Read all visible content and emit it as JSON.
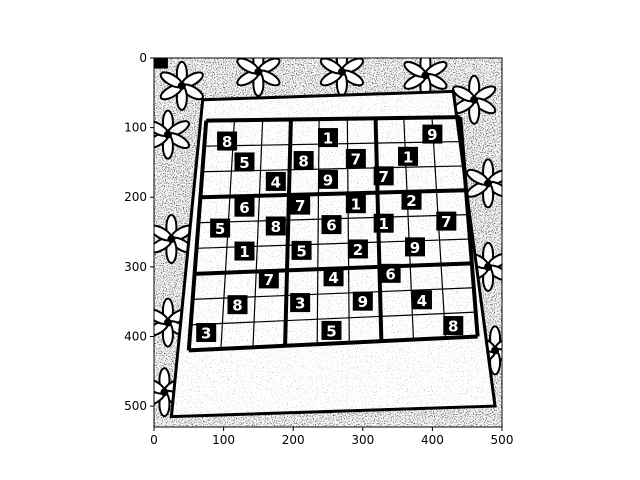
{
  "chart_data": {
    "type": "image",
    "colormap": "binary",
    "colors": {
      "foreground": "#000000",
      "background": "#ffffff"
    },
    "image_shape": [
      530,
      500
    ],
    "xlim": [
      0,
      500
    ],
    "ylim": [
      530,
      0
    ],
    "x_ticks": [
      0,
      100,
      200,
      300,
      400,
      500
    ],
    "y_ticks": [
      0,
      100,
      200,
      300,
      400,
      500
    ],
    "x_tick_labels": [
      "0",
      "100",
      "200",
      "300",
      "400",
      "500"
    ],
    "y_tick_labels": [
      "0",
      "100",
      "200",
      "300",
      "400",
      "500"
    ],
    "board_corners": {
      "outer": [
        [
          70,
          60
        ],
        [
          430,
          48
        ],
        [
          490,
          500
        ],
        [
          25,
          515
        ]
      ],
      "grid": [
        [
          75,
          90
        ],
        [
          440,
          85
        ],
        [
          465,
          400
        ],
        [
          50,
          420
        ]
      ]
    },
    "digits": [
      {
        "x": 105,
        "y": 120,
        "text": "8"
      },
      {
        "x": 250,
        "y": 115,
        "text": "1"
      },
      {
        "x": 400,
        "y": 110,
        "text": "9"
      },
      {
        "x": 130,
        "y": 150,
        "text": "5"
      },
      {
        "x": 215,
        "y": 148,
        "text": "8"
      },
      {
        "x": 290,
        "y": 145,
        "text": "7"
      },
      {
        "x": 365,
        "y": 142,
        "text": "1"
      },
      {
        "x": 175,
        "y": 178,
        "text": "4"
      },
      {
        "x": 250,
        "y": 175,
        "text": "9"
      },
      {
        "x": 330,
        "y": 170,
        "text": "7"
      },
      {
        "x": 130,
        "y": 215,
        "text": "6"
      },
      {
        "x": 210,
        "y": 212,
        "text": "7"
      },
      {
        "x": 290,
        "y": 210,
        "text": "1"
      },
      {
        "x": 370,
        "y": 205,
        "text": "2"
      },
      {
        "x": 95,
        "y": 245,
        "text": "5"
      },
      {
        "x": 175,
        "y": 242,
        "text": "8"
      },
      {
        "x": 255,
        "y": 240,
        "text": "6"
      },
      {
        "x": 330,
        "y": 238,
        "text": "1"
      },
      {
        "x": 420,
        "y": 235,
        "text": "7"
      },
      {
        "x": 130,
        "y": 278,
        "text": "1"
      },
      {
        "x": 212,
        "y": 277,
        "text": "5"
      },
      {
        "x": 293,
        "y": 275,
        "text": "2"
      },
      {
        "x": 375,
        "y": 272,
        "text": "9"
      },
      {
        "x": 165,
        "y": 318,
        "text": "7"
      },
      {
        "x": 258,
        "y": 315,
        "text": "4"
      },
      {
        "x": 340,
        "y": 310,
        "text": "6"
      },
      {
        "x": 120,
        "y": 355,
        "text": "8"
      },
      {
        "x": 210,
        "y": 352,
        "text": "3"
      },
      {
        "x": 300,
        "y": 350,
        "text": "9"
      },
      {
        "x": 385,
        "y": 348,
        "text": "4"
      },
      {
        "x": 75,
        "y": 395,
        "text": "3"
      },
      {
        "x": 255,
        "y": 392,
        "text": "5"
      },
      {
        "x": 430,
        "y": 385,
        "text": "8"
      }
    ]
  }
}
